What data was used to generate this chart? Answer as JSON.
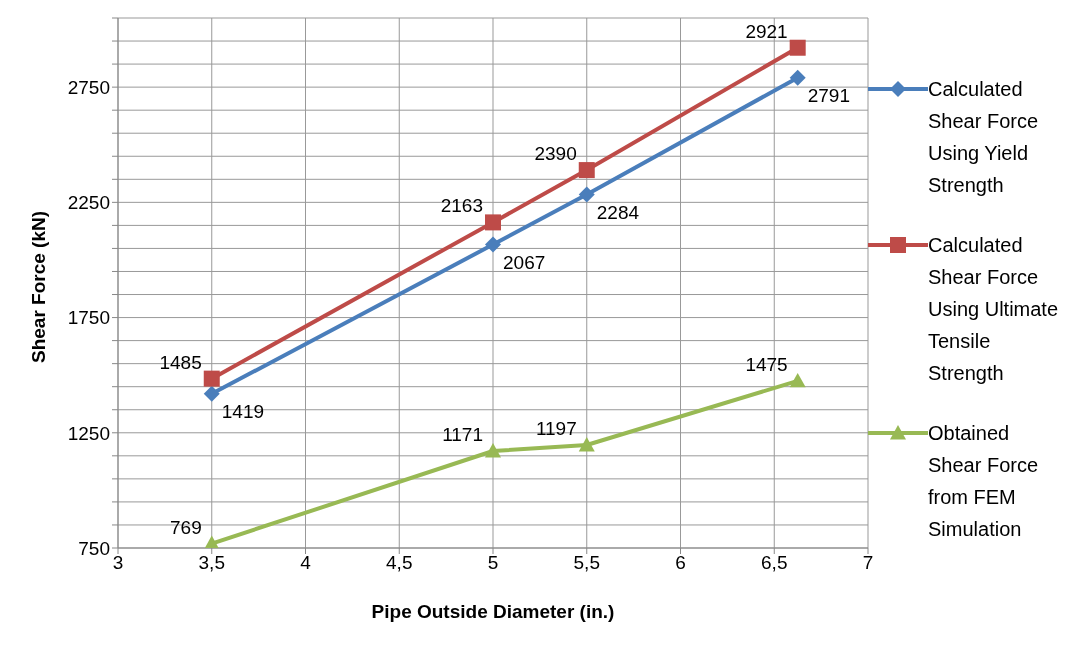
{
  "chart_data": {
    "type": "line",
    "xlabel": "Pipe Outside Diameter (in.)",
    "ylabel": "Shear Force (kN)",
    "xlim": [
      3,
      7
    ],
    "xticks": [
      3,
      {
        "value": 3.5,
        "label": "3,5"
      },
      4,
      {
        "value": 4.5,
        "label": "4,5"
      },
      5,
      {
        "value": 5.5,
        "label": "5,5"
      },
      6,
      {
        "value": 6.5,
        "label": "6,5"
      },
      7
    ],
    "ylim": [
      750,
      3050
    ],
    "yticks": [
      750,
      {
        "value": 850,
        "label": null
      },
      {
        "value": 950,
        "label": null
      },
      {
        "value": 1050,
        "label": null
      },
      {
        "value": 1150,
        "label": null
      },
      1250,
      {
        "value": 1350,
        "label": null
      },
      {
        "value": 1450,
        "label": null
      },
      {
        "value": 1550,
        "label": null
      },
      {
        "value": 1650,
        "label": null
      },
      1750,
      {
        "value": 1850,
        "label": null
      },
      {
        "value": 1950,
        "label": null
      },
      {
        "value": 2050,
        "label": null
      },
      {
        "value": 2150,
        "label": null
      },
      2250,
      {
        "value": 2350,
        "label": null
      },
      {
        "value": 2450,
        "label": null
      },
      {
        "value": 2550,
        "label": null
      },
      {
        "value": 2650,
        "label": null
      },
      2750,
      {
        "value": 2850,
        "label": null
      },
      {
        "value": 2950,
        "label": null
      },
      {
        "value": 3050,
        "label": null
      }
    ],
    "grid": true,
    "legend": "right",
    "data_labels": true,
    "line_style": "solid",
    "x": [
      3.5,
      5,
      5.5,
      6.625
    ],
    "series": [
      {
        "name": "Calculated Shear Force Using Yield Strength",
        "color": "#4a7ebb",
        "marker": "diamond",
        "values": [
          1419,
          2067,
          2284,
          2791
        ]
      },
      {
        "name": "Calculated Shear Force Using Ultimate Tensile Strength",
        "color": "#be4b48",
        "marker": "square",
        "values": [
          1485,
          2163,
          2390,
          2921
        ]
      },
      {
        "name": "Obtained Shear Force from FEM Simulation",
        "color": "#98b954",
        "marker": "triangle",
        "values": [
          769,
          1171,
          1197,
          1475
        ]
      }
    ]
  }
}
